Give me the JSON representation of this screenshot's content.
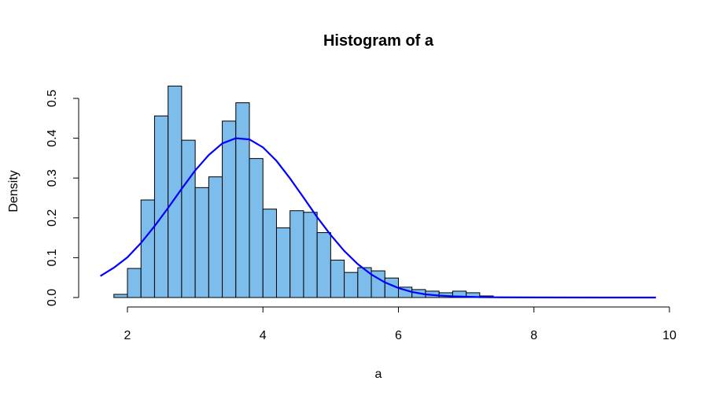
{
  "chart_data": {
    "type": "bar",
    "title": "Histogram of a",
    "xlabel": "a",
    "ylabel": "Density",
    "xlim": [
      1.6,
      9.8
    ],
    "ylim": [
      0,
      0.53
    ],
    "x_ticks": [
      "2",
      "4",
      "6",
      "8",
      "10"
    ],
    "y_ticks": [
      "0.0",
      "0.1",
      "0.2",
      "0.3",
      "0.4",
      "0.5"
    ],
    "bin_width": 0.2,
    "bins": [
      {
        "x0": 1.8,
        "x1": 2.0,
        "density": 0.008
      },
      {
        "x0": 2.0,
        "x1": 2.2,
        "density": 0.073
      },
      {
        "x0": 2.2,
        "x1": 2.4,
        "density": 0.245
      },
      {
        "x0": 2.4,
        "x1": 2.6,
        "density": 0.456
      },
      {
        "x0": 2.6,
        "x1": 2.8,
        "density": 0.531
      },
      {
        "x0": 2.8,
        "x1": 3.0,
        "density": 0.395
      },
      {
        "x0": 3.0,
        "x1": 3.2,
        "density": 0.276
      },
      {
        "x0": 3.2,
        "x1": 3.4,
        "density": 0.303
      },
      {
        "x0": 3.4,
        "x1": 3.6,
        "density": 0.443
      },
      {
        "x0": 3.6,
        "x1": 3.8,
        "density": 0.489
      },
      {
        "x0": 3.8,
        "x1": 4.0,
        "density": 0.349
      },
      {
        "x0": 4.0,
        "x1": 4.2,
        "density": 0.222
      },
      {
        "x0": 4.2,
        "x1": 4.4,
        "density": 0.175
      },
      {
        "x0": 4.4,
        "x1": 4.6,
        "density": 0.218
      },
      {
        "x0": 4.6,
        "x1": 4.8,
        "density": 0.214
      },
      {
        "x0": 4.8,
        "x1": 5.0,
        "density": 0.163
      },
      {
        "x0": 5.0,
        "x1": 5.2,
        "density": 0.094
      },
      {
        "x0": 5.2,
        "x1": 5.4,
        "density": 0.063
      },
      {
        "x0": 5.4,
        "x1": 5.6,
        "density": 0.075
      },
      {
        "x0": 5.6,
        "x1": 5.8,
        "density": 0.067
      },
      {
        "x0": 5.8,
        "x1": 6.0,
        "density": 0.049
      },
      {
        "x0": 6.0,
        "x1": 6.2,
        "density": 0.026
      },
      {
        "x0": 6.2,
        "x1": 6.4,
        "density": 0.02
      },
      {
        "x0": 6.4,
        "x1": 6.6,
        "density": 0.016
      },
      {
        "x0": 6.6,
        "x1": 6.8,
        "density": 0.012
      },
      {
        "x0": 6.8,
        "x1": 7.0,
        "density": 0.016
      },
      {
        "x0": 7.0,
        "x1": 7.2,
        "density": 0.012
      },
      {
        "x0": 7.2,
        "x1": 7.4,
        "density": 0.004
      }
    ],
    "overlay_curve": {
      "type": "line",
      "color": "#0000ff",
      "x": [
        1.6,
        1.8,
        2.0,
        2.2,
        2.4,
        2.6,
        2.8,
        3.0,
        3.2,
        3.4,
        3.6,
        3.8,
        4.0,
        4.2,
        4.4,
        4.6,
        4.8,
        5.0,
        5.2,
        5.4,
        5.6,
        5.8,
        6.0,
        6.2,
        6.4,
        6.6,
        6.8,
        7.0,
        7.2,
        7.4,
        8.0,
        9.0,
        9.8
      ],
      "y": [
        0.054,
        0.075,
        0.101,
        0.137,
        0.179,
        0.225,
        0.273,
        0.319,
        0.358,
        0.387,
        0.4,
        0.397,
        0.377,
        0.343,
        0.299,
        0.251,
        0.202,
        0.157,
        0.117,
        0.084,
        0.058,
        0.038,
        0.024,
        0.014,
        0.008,
        0.005,
        0.003,
        0.002,
        0.001,
        0.0005,
        0.0001,
        0.0,
        0.0
      ]
    },
    "grid": false,
    "colors": {
      "bar_fill": "#7cbdeb",
      "bar_stroke": "#000000",
      "curve": "#0000ff"
    }
  }
}
